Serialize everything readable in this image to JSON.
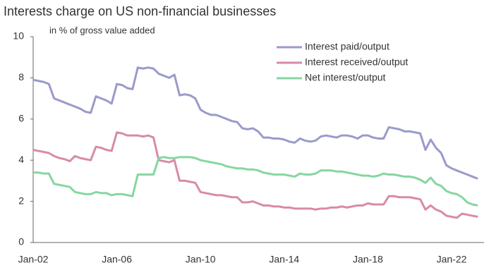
{
  "chart_data": {
    "type": "line",
    "title": "Interests charge on US non-financial businesses",
    "subtitle": "in % of gross value added",
    "categories": [
      "Jan-02",
      null,
      null,
      null,
      null,
      null,
      null,
      null,
      null,
      null,
      null,
      null,
      null,
      null,
      null,
      null,
      "Jan-06",
      null,
      null,
      null,
      null,
      null,
      null,
      null,
      null,
      null,
      null,
      null,
      null,
      null,
      null,
      null,
      "Jan-10",
      null,
      null,
      null,
      null,
      null,
      null,
      null,
      null,
      null,
      null,
      null,
      null,
      null,
      null,
      null,
      "Jan-14",
      null,
      null,
      null,
      null,
      null,
      null,
      null,
      null,
      null,
      null,
      null,
      null,
      null,
      null,
      null,
      "Jan-18",
      null,
      null,
      null,
      null,
      null,
      null,
      null,
      null,
      null,
      null,
      null,
      null,
      null,
      null,
      null,
      "Jan-22",
      null,
      null,
      null,
      null,
      null
    ],
    "series": [
      {
        "name": "Interest paid/output",
        "color": "#9a9acb",
        "values": [
          7.9,
          7.85,
          7.8,
          7.7,
          7.0,
          6.9,
          6.8,
          6.7,
          6.6,
          6.5,
          6.35,
          6.3,
          7.1,
          7.0,
          6.9,
          6.75,
          7.7,
          7.65,
          7.5,
          7.45,
          8.5,
          8.45,
          8.5,
          8.45,
          8.2,
          8.1,
          8.0,
          8.15,
          7.15,
          7.2,
          7.15,
          7.0,
          6.45,
          6.3,
          6.2,
          6.2,
          6.1,
          6.0,
          5.9,
          5.85,
          5.55,
          5.5,
          5.55,
          5.4,
          5.1,
          5.1,
          5.05,
          5.05,
          5.0,
          4.9,
          4.85,
          5.05,
          4.95,
          4.9,
          4.95,
          5.15,
          5.2,
          5.15,
          5.1,
          5.2,
          5.2,
          5.15,
          5.05,
          5.2,
          5.2,
          5.1,
          5.05,
          5.05,
          5.6,
          5.55,
          5.5,
          5.4,
          5.4,
          5.35,
          5.3,
          4.5,
          5.0,
          4.6,
          4.35,
          3.75,
          3.6,
          3.5,
          3.4,
          3.3,
          3.2,
          3.1
        ]
      },
      {
        "name": "Interest received/output",
        "color": "#d98aa8",
        "values": [
          4.5,
          4.45,
          4.4,
          4.35,
          4.2,
          4.1,
          4.05,
          3.95,
          4.2,
          4.1,
          4.05,
          4.0,
          4.65,
          4.6,
          4.5,
          4.45,
          5.35,
          5.3,
          5.2,
          5.2,
          5.2,
          5.15,
          5.2,
          5.1,
          4.0,
          3.95,
          3.9,
          4.0,
          3.0,
          3.0,
          2.95,
          2.9,
          2.45,
          2.4,
          2.35,
          2.3,
          2.3,
          2.25,
          2.2,
          2.2,
          1.95,
          1.95,
          2.0,
          1.9,
          1.8,
          1.8,
          1.75,
          1.75,
          1.7,
          1.7,
          1.65,
          1.65,
          1.65,
          1.65,
          1.6,
          1.65,
          1.65,
          1.7,
          1.7,
          1.75,
          1.7,
          1.75,
          1.8,
          1.8,
          1.9,
          1.85,
          1.85,
          1.85,
          2.25,
          2.25,
          2.2,
          2.2,
          2.2,
          2.15,
          2.1,
          1.6,
          1.8,
          1.6,
          1.5,
          1.3,
          1.25,
          1.2,
          1.4,
          1.35,
          1.3,
          1.25
        ]
      },
      {
        "name": "Net interest/output",
        "color": "#86d6a0",
        "values": [
          3.4,
          3.4,
          3.35,
          3.35,
          2.85,
          2.8,
          2.75,
          2.7,
          2.45,
          2.4,
          2.35,
          2.35,
          2.45,
          2.4,
          2.4,
          2.3,
          2.35,
          2.35,
          2.3,
          2.25,
          3.3,
          3.3,
          3.3,
          3.3,
          4.1,
          4.15,
          4.1,
          4.1,
          4.15,
          4.15,
          4.15,
          4.1,
          4.0,
          3.95,
          3.9,
          3.85,
          3.8,
          3.7,
          3.65,
          3.6,
          3.6,
          3.55,
          3.55,
          3.5,
          3.4,
          3.35,
          3.3,
          3.3,
          3.3,
          3.25,
          3.2,
          3.35,
          3.3,
          3.3,
          3.35,
          3.5,
          3.5,
          3.5,
          3.45,
          3.45,
          3.4,
          3.35,
          3.3,
          3.25,
          3.25,
          3.2,
          3.25,
          3.35,
          3.3,
          3.3,
          3.25,
          3.2,
          3.2,
          3.15,
          3.05,
          2.9,
          3.15,
          2.85,
          2.75,
          2.5,
          2.4,
          2.35,
          2.2,
          1.95,
          1.85,
          1.8
        ]
      }
    ],
    "ylim": [
      0,
      10
    ],
    "yticks": [
      0,
      2,
      4,
      6,
      8,
      10
    ],
    "grid": false,
    "legend": "upper-right"
  }
}
